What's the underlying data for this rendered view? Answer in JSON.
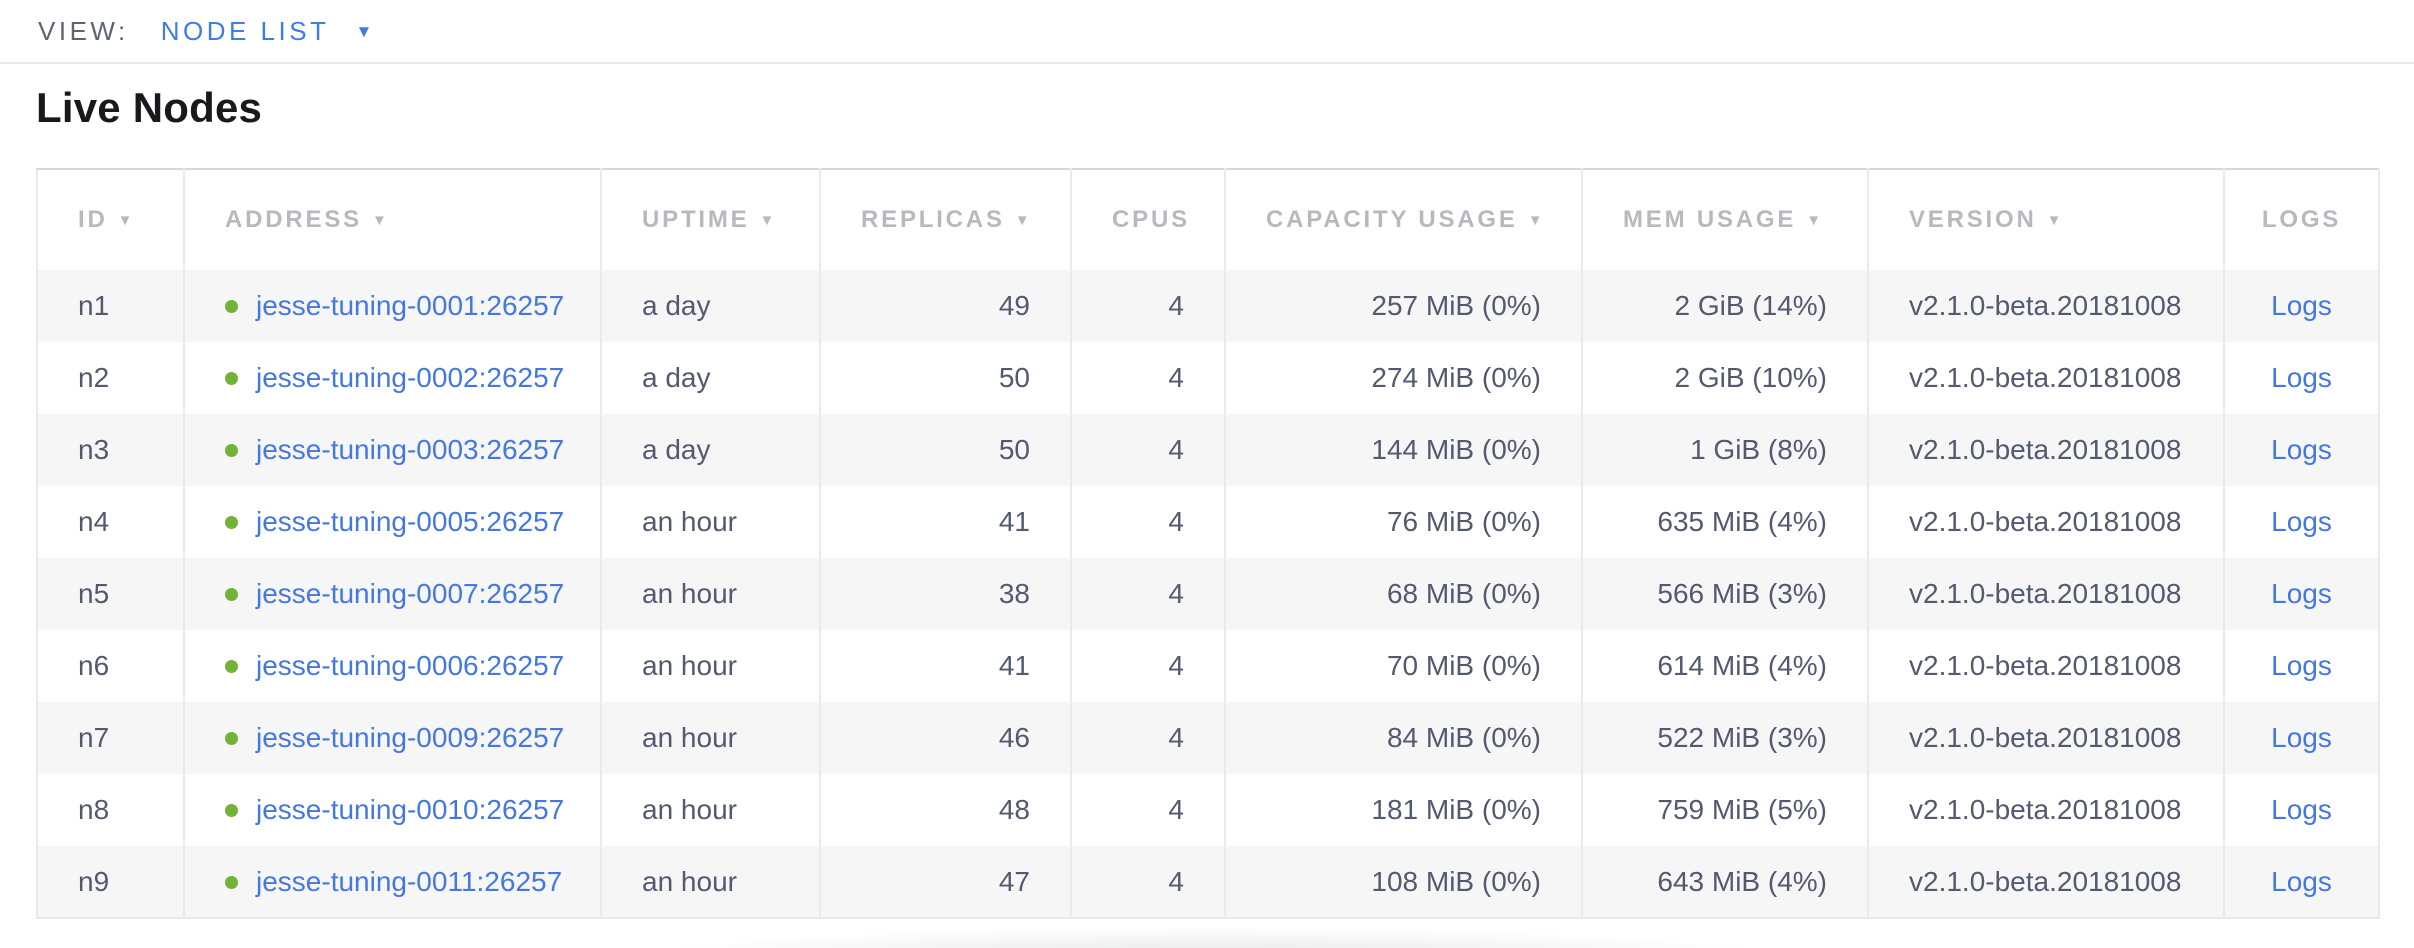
{
  "view_bar": {
    "label": "VIEW:",
    "selected": "NODE LIST"
  },
  "page_title": "Live Nodes",
  "icons": {
    "dropdown_caret": "▼",
    "sort_arrow": "▼",
    "node_status": "green-dot"
  },
  "colors": {
    "accent_blue": "#3e7ceb",
    "link_blue": "#4478e0",
    "healthy_green": "#72b236",
    "header_text": "#b6b9be",
    "body_text": "#525a6e",
    "row_alt_bg": "#f6f6f7"
  },
  "table": {
    "columns": [
      {
        "key": "id",
        "label": "ID",
        "sortable": true
      },
      {
        "key": "address",
        "label": "ADDRESS",
        "sortable": true
      },
      {
        "key": "uptime",
        "label": "UPTIME",
        "sortable": true
      },
      {
        "key": "replicas",
        "label": "REPLICAS",
        "sortable": true
      },
      {
        "key": "cpus",
        "label": "CPUS",
        "sortable": false
      },
      {
        "key": "capacity",
        "label": "CAPACITY USAGE",
        "sortable": true
      },
      {
        "key": "mem",
        "label": "MEM USAGE",
        "sortable": true
      },
      {
        "key": "version",
        "label": "VERSION",
        "sortable": true
      },
      {
        "key": "logs",
        "label": "LOGS",
        "sortable": false
      }
    ],
    "rows": [
      {
        "id": "n1",
        "address": "jesse-tuning-0001:26257",
        "uptime": "a day",
        "replicas": "49",
        "cpus": "4",
        "capacity": "257 MiB (0%)",
        "mem": "2 GiB (14%)",
        "version": "v2.1.0-beta.20181008",
        "logs": "Logs"
      },
      {
        "id": "n2",
        "address": "jesse-tuning-0002:26257",
        "uptime": "a day",
        "replicas": "50",
        "cpus": "4",
        "capacity": "274 MiB (0%)",
        "mem": "2 GiB (10%)",
        "version": "v2.1.0-beta.20181008",
        "logs": "Logs"
      },
      {
        "id": "n3",
        "address": "jesse-tuning-0003:26257",
        "uptime": "a day",
        "replicas": "50",
        "cpus": "4",
        "capacity": "144 MiB (0%)",
        "mem": "1 GiB (8%)",
        "version": "v2.1.0-beta.20181008",
        "logs": "Logs"
      },
      {
        "id": "n4",
        "address": "jesse-tuning-0005:26257",
        "uptime": "an hour",
        "replicas": "41",
        "cpus": "4",
        "capacity": "76 MiB (0%)",
        "mem": "635 MiB (4%)",
        "version": "v2.1.0-beta.20181008",
        "logs": "Logs"
      },
      {
        "id": "n5",
        "address": "jesse-tuning-0007:26257",
        "uptime": "an hour",
        "replicas": "38",
        "cpus": "4",
        "capacity": "68 MiB (0%)",
        "mem": "566 MiB (3%)",
        "version": "v2.1.0-beta.20181008",
        "logs": "Logs"
      },
      {
        "id": "n6",
        "address": "jesse-tuning-0006:26257",
        "uptime": "an hour",
        "replicas": "41",
        "cpus": "4",
        "capacity": "70 MiB (0%)",
        "mem": "614 MiB (4%)",
        "version": "v2.1.0-beta.20181008",
        "logs": "Logs"
      },
      {
        "id": "n7",
        "address": "jesse-tuning-0009:26257",
        "uptime": "an hour",
        "replicas": "46",
        "cpus": "4",
        "capacity": "84 MiB (0%)",
        "mem": "522 MiB (3%)",
        "version": "v2.1.0-beta.20181008",
        "logs": "Logs"
      },
      {
        "id": "n8",
        "address": "jesse-tuning-0010:26257",
        "uptime": "an hour",
        "replicas": "48",
        "cpus": "4",
        "capacity": "181 MiB (0%)",
        "mem": "759 MiB (5%)",
        "version": "v2.1.0-beta.20181008",
        "logs": "Logs"
      },
      {
        "id": "n9",
        "address": "jesse-tuning-0011:26257",
        "uptime": "an hour",
        "replicas": "47",
        "cpus": "4",
        "capacity": "108 MiB (0%)",
        "mem": "643 MiB (4%)",
        "version": "v2.1.0-beta.20181008",
        "logs": "Logs"
      }
    ]
  }
}
